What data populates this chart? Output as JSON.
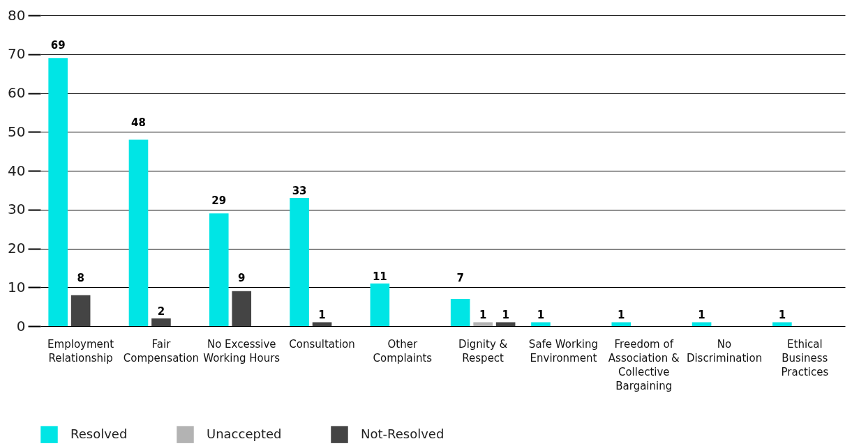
{
  "chart_data": {
    "type": "bar",
    "categories": [
      "Employment Relationship",
      "Fair Compensation",
      "No Excessive Working Hours",
      "Consultation",
      "Other Complaints",
      "Dignity & Respect",
      "Safe Working Environment",
      "Freedom of Association & Collective Bargaining",
      "No Discrimination",
      "Ethical Business Practices"
    ],
    "series": [
      {
        "name": "Resolved",
        "color": "#00e5e5",
        "values": [
          69,
          48,
          29,
          33,
          11,
          7,
          1,
          1,
          1,
          1
        ]
      },
      {
        "name": "Unaccepted",
        "color": "#b3b3b3",
        "values": [
          null,
          null,
          null,
          null,
          null,
          1,
          null,
          null,
          null,
          null
        ]
      },
      {
        "name": "Not-Resolved",
        "color": "#444444",
        "values": [
          8,
          2,
          9,
          1,
          null,
          1,
          null,
          null,
          null,
          null
        ]
      }
    ],
    "ylim": [
      0,
      80
    ],
    "yticks": [
      0,
      10,
      20,
      30,
      40,
      50,
      60,
      70,
      80
    ],
    "grid": "y",
    "legend": "bottom",
    "data_labels": true
  }
}
